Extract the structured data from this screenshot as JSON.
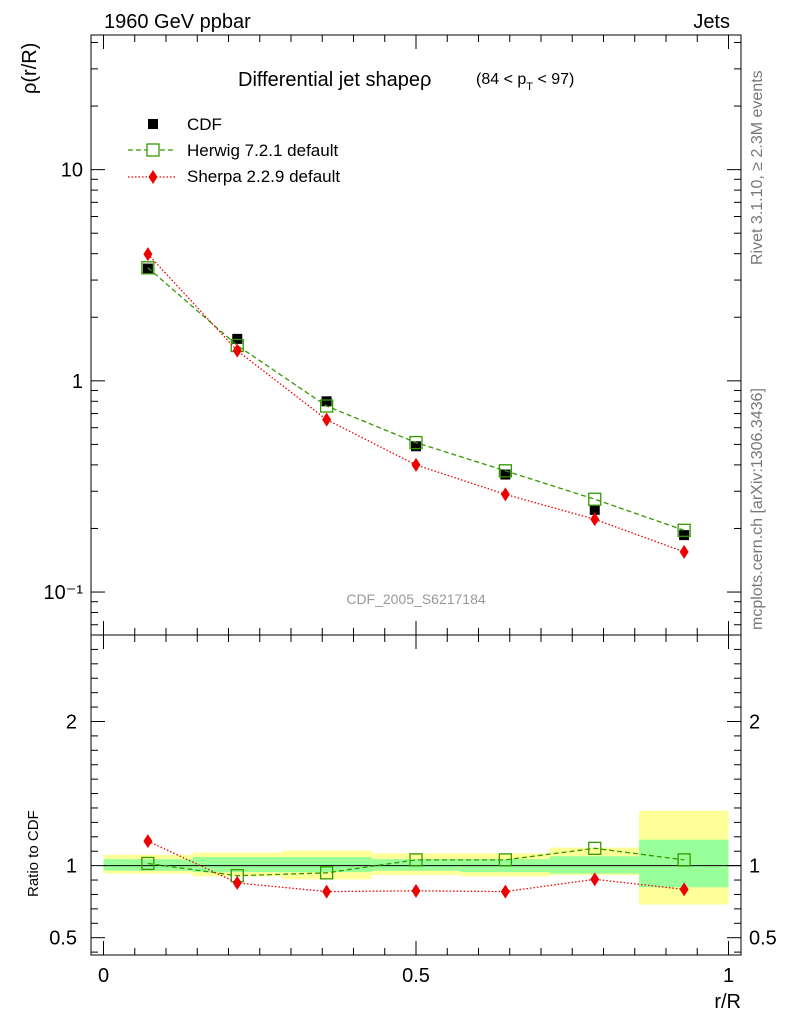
{
  "header": {
    "left": "1960 GeV ppbar",
    "right": "Jets"
  },
  "side_text": {
    "rivet": "Rivet 3.1.10, ≥ 2.3M events",
    "source": "mcplots.cern.ch [arXiv:1306.3436]"
  },
  "chart_data": [
    {
      "type": "line",
      "panel": "main",
      "title": "Differential jet shapeρ",
      "title_cut": "(84 < p_T < 97)",
      "ylabel": "ρ(r/R)",
      "yscale": "log",
      "ylim": [
        0.0626,
        43.4
      ],
      "y_ticks": [
        "10⁻¹",
        "1",
        "10"
      ],
      "xlim": [
        -0.02,
        1.02
      ],
      "watermark": "CDF_2005_S6217184",
      "legend_position": "top-left",
      "x": [
        0.071,
        0.214,
        0.357,
        0.5,
        0.643,
        0.786,
        0.929
      ],
      "series": [
        {
          "name": "CDF",
          "color": "#000000",
          "marker": "filled-square",
          "values": [
            3.4,
            1.58,
            0.8,
            0.49,
            0.36,
            0.245,
            0.186
          ]
        },
        {
          "name": "Herwig 7.2.1 default",
          "color": "#339900",
          "marker": "open-square",
          "line": "dashed",
          "values": [
            3.43,
            1.47,
            0.76,
            0.51,
            0.375,
            0.275,
            0.196
          ]
        },
        {
          "name": "Sherpa 2.2.9 default",
          "color": "#ee0000",
          "marker": "filled-diamond",
          "line": "dotted",
          "values": [
            3.98,
            1.39,
            0.655,
            0.4,
            0.29,
            0.221,
            0.155
          ]
        }
      ]
    },
    {
      "type": "line",
      "panel": "ratio",
      "ylabel": "Ratio to CDF",
      "xlabel": "r/R",
      "ylim": [
        0.38,
        2.6
      ],
      "y_ticks": [
        "0.5",
        "1",
        "2"
      ],
      "x_ticks": [
        "0",
        "0.5",
        "1"
      ],
      "xlim": [
        -0.02,
        1.02
      ],
      "x": [
        0.071,
        0.214,
        0.357,
        0.5,
        0.643,
        0.786,
        0.929
      ],
      "reference": 1,
      "band_edges": [
        0,
        0.143,
        0.286,
        0.429,
        0.571,
        0.714,
        0.857,
        1.0
      ],
      "band_colors": {
        "outer": "#ffff99",
        "inner": "#99ff99"
      },
      "band_outer": [
        [
          0.945,
          1.075
        ],
        [
          0.925,
          1.09
        ],
        [
          0.905,
          1.105
        ],
        [
          0.935,
          1.085
        ],
        [
          0.925,
          1.085
        ],
        [
          0.935,
          1.125
        ],
        [
          0.73,
          1.38
        ]
      ],
      "band_inner": [
        [
          0.965,
          1.045
        ],
        [
          0.955,
          1.06
        ],
        [
          0.955,
          1.06
        ],
        [
          0.965,
          1.045
        ],
        [
          0.955,
          1.045
        ],
        [
          0.945,
          1.065
        ],
        [
          0.85,
          1.18
        ]
      ],
      "series": [
        {
          "name": "Herwig 7.2.1 default",
          "color": "#339900",
          "marker": "open-square",
          "line": "dashed",
          "values": [
            1.015,
            0.93,
            0.95,
            1.04,
            1.04,
            1.12,
            1.04
          ]
        },
        {
          "name": "Sherpa 2.2.9 default",
          "color": "#ee0000",
          "marker": "filled-diamond",
          "line": "dotted",
          "values": [
            1.17,
            0.88,
            0.82,
            0.825,
            0.82,
            0.905,
            0.835
          ]
        }
      ]
    }
  ]
}
